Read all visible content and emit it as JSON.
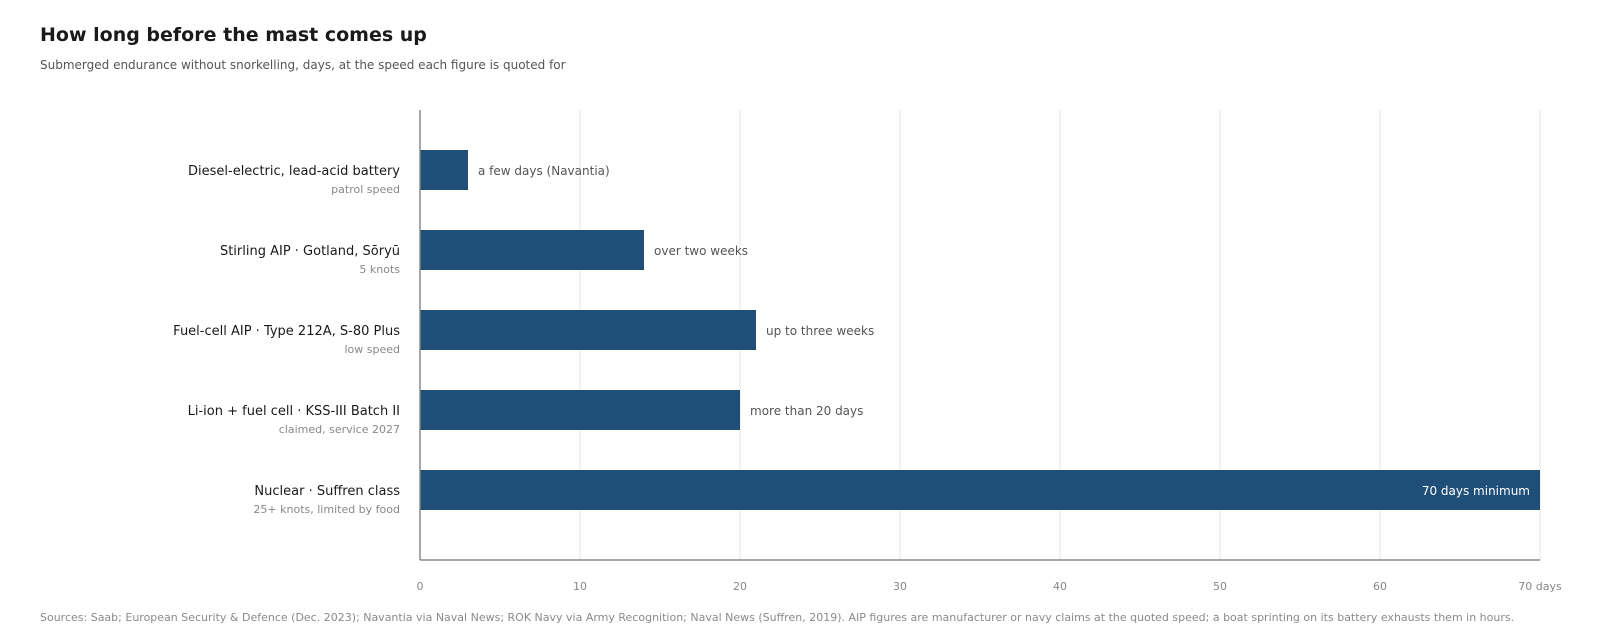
{
  "chart_data": {
    "type": "bar",
    "orientation": "horizontal",
    "title": "How long before the mast comes up",
    "subtitle": "Submerged endurance without snorkelling, days, at the speed each figure is quoted for",
    "categories": [
      "Diesel-electric, lead-acid battery",
      "Stirling AIP · Gotland, Sōryū",
      "Fuel-cell AIP · Type 212A, S-80 Plus",
      "Li-ion + fuel cell · KSS-III Batch II",
      "Nuclear · Suffren class"
    ],
    "category_notes": [
      "patrol speed",
      "5 knots",
      "low speed",
      "claimed, service 2027",
      "25+ knots, limited by food"
    ],
    "values": [
      3,
      14,
      21,
      20,
      70
    ],
    "data_labels": [
      "a few days (Navantia)",
      "over two weeks",
      "up to three weeks",
      "more than 20 days",
      "70 days minimum"
    ],
    "xlim": [
      0,
      70
    ],
    "x_ticks": [
      "0",
      "10",
      "20",
      "30",
      "40",
      "50",
      "60",
      "70 days"
    ],
    "grid": true,
    "bar_color": "#1f4e79",
    "source": "Sources: Saab; European Security & Defence (Dec. 2023); Navantia via Naval News; ROK Navy via Army Recognition; Naval News (Suffren, 2019). AIP figures are manufacturer or navy claims at the quoted speed; a boat sprinting on its battery exhausts them in hours."
  }
}
